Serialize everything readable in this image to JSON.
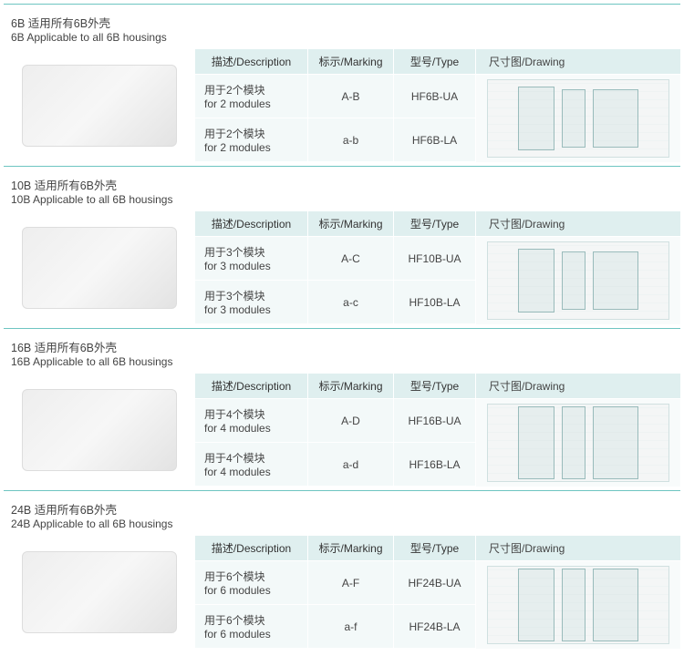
{
  "headers": {
    "description": "描述/Description",
    "marking": "标示/Marking",
    "type": "型号/Type",
    "drawing": "尺寸图/Drawing"
  },
  "sections": [
    {
      "header_zh": "6B 适用所有6B外壳",
      "header_en": "6B Applicable to all 6B housings",
      "img_alt": "6B frame",
      "drawing_alt": "6B drawing",
      "rows": [
        {
          "desc_zh": "用于2个模块",
          "desc_en": "for 2 modules",
          "marking": "A-B",
          "type": "HF6B-UA"
        },
        {
          "desc_zh": "用于2个模块",
          "desc_en": "for 2 modules",
          "marking": "a-b",
          "type": "HF6B-LA"
        }
      ]
    },
    {
      "header_zh": "10B 适用所有6B外壳",
      "header_en": "10B Applicable to all 6B housings",
      "img_alt": "10B frame",
      "drawing_alt": "10B drawing",
      "rows": [
        {
          "desc_zh": "用于3个模块",
          "desc_en": "for 3 modules",
          "marking": "A-C",
          "type": "HF10B-UA"
        },
        {
          "desc_zh": "用于3个模块",
          "desc_en": "for 3 modules",
          "marking": "a-c",
          "type": "HF10B-LA"
        }
      ]
    },
    {
      "header_zh": "16B 适用所有6B外壳",
      "header_en": "16B Applicable to all 6B housings",
      "img_alt": "16B frame",
      "drawing_alt": "16B drawing",
      "rows": [
        {
          "desc_zh": "用于4个模块",
          "desc_en": "for 4 modules",
          "marking": "A-D",
          "type": "HF16B-UA"
        },
        {
          "desc_zh": "用于4个模块",
          "desc_en": "for 4 modules",
          "marking": "a-d",
          "type": "HF16B-LA"
        }
      ]
    },
    {
      "header_zh": "24B 适用所有6B外壳",
      "header_en": "24B Applicable to all 6B housings",
      "img_alt": "24B frame",
      "drawing_alt": "24B drawing",
      "rows": [
        {
          "desc_zh": "用于6个模块",
          "desc_en": "for 6 modules",
          "marking": "A-F",
          "type": "HF24B-UA"
        },
        {
          "desc_zh": "用于6个模块",
          "desc_en": "for 6 modules",
          "marking": "a-f",
          "type": "HF24B-LA"
        }
      ]
    }
  ],
  "colors": {
    "border_accent": "#6ec5c1",
    "th_bg": "#dfefef",
    "td_bg": "#f3f9f9"
  }
}
